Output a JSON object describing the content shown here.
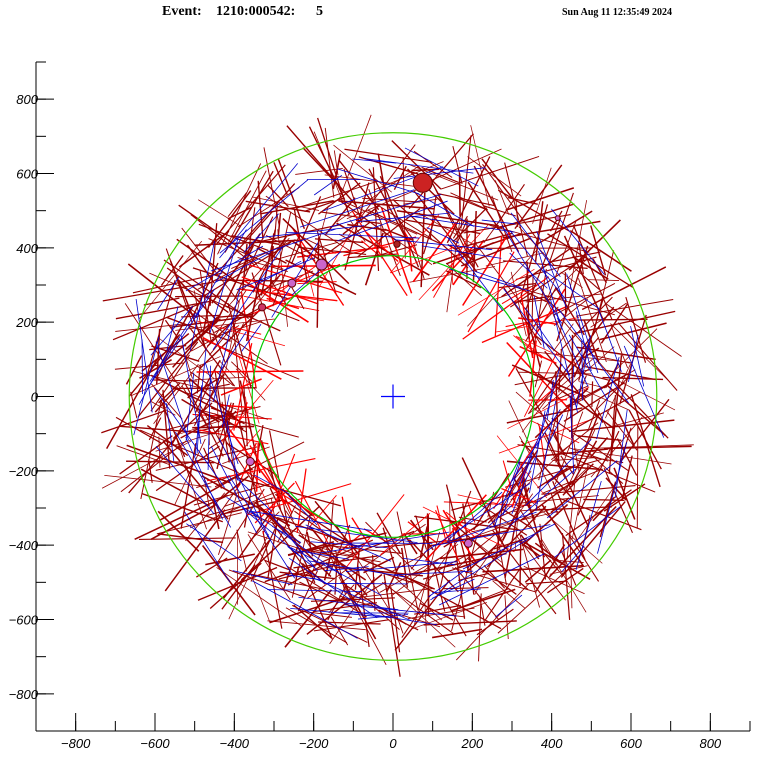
{
  "header": {
    "event_label": "Event:",
    "event_id": "1210:000542:",
    "event_number": "5",
    "timestamp": "Sun Aug 11 12:35:49 2024"
  },
  "chart_data": {
    "type": "scatter",
    "xlim": [
      -900,
      900
    ],
    "ylim": [
      -900,
      900
    ],
    "x_ticks": [
      -800,
      -600,
      -400,
      -200,
      0,
      200,
      400,
      600,
      800
    ],
    "y_ticks": [
      800,
      600,
      400,
      200,
      0,
      -200,
      -400,
      -600,
      -800
    ],
    "inner_circle_radius": 355,
    "outer_circle_radius": 665,
    "colors": {
      "inner_circle": "#00cc00",
      "outer_circle": "#44cc00",
      "center_marker": "#0000ff",
      "wire_hits": "#990000",
      "bright_hits": "#ff0000",
      "tracks": "#0000cc",
      "clusters": "#cc66cc"
    },
    "clusters": [
      {
        "x": 75,
        "y": 575,
        "r": 24,
        "color": "#cc2222"
      },
      {
        "x": -180,
        "y": 355,
        "r": 14,
        "color": "#cc66cc"
      },
      {
        "x": -255,
        "y": 305,
        "r": 10,
        "color": "#cc66cc"
      },
      {
        "x": -330,
        "y": 240,
        "r": 9,
        "color": "#cc3366"
      },
      {
        "x": -360,
        "y": -175,
        "r": 10,
        "color": "#cc66cc"
      },
      {
        "x": 190,
        "y": -395,
        "r": 10,
        "color": "#cc66cc"
      },
      {
        "x": 10,
        "y": 410,
        "r": 8,
        "color": "#aa2222"
      },
      {
        "x": 415,
        "y": 480,
        "r": 6,
        "color": "#cc66cc"
      }
    ]
  }
}
